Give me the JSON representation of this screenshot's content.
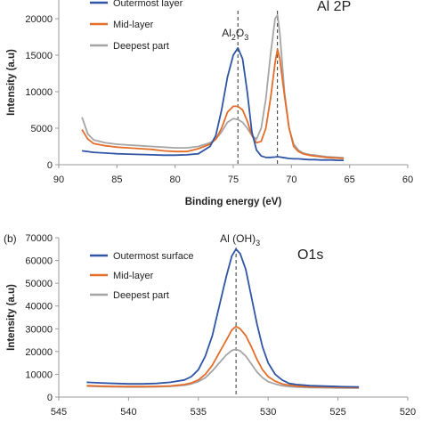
{
  "chart_data": [
    {
      "type": "line",
      "panel_label": "",
      "title": "Al 2P",
      "title_display": "Al 2P",
      "xlabel": "Binding energy (eV)",
      "ylabel": "Intensity (a.u)",
      "xlim": [
        90,
        60
      ],
      "ylim": [
        0,
        25000
      ],
      "xticks": [
        90,
        85,
        80,
        75,
        70,
        65,
        60
      ],
      "yticks": [
        0,
        5000,
        10000,
        15000,
        20000
      ],
      "grid": false,
      "legend_position": "top-left",
      "colors": {
        "series_1": "#2f55a4",
        "series_2": "#e46d2a",
        "series_3": "#a5a5a5"
      },
      "annotations": [
        {
          "text_main": "Al",
          "text_sub1": "2",
          "text_mid": "O",
          "text_sub2": "3",
          "x": 74.6
        },
        {
          "text": "",
          "x": 71.2
        }
      ],
      "series": [
        {
          "name": "Outermost layer",
          "x": [
            88,
            87,
            86,
            85,
            84,
            83,
            82,
            81,
            80,
            79,
            78,
            77,
            76.5,
            76,
            75.5,
            75,
            74.6,
            74.2,
            73.8,
            73.4,
            73,
            72.6,
            72.2,
            71.8,
            71.4,
            71.2,
            71,
            70.6,
            70.2,
            69.8,
            69.4,
            69,
            68.5,
            68,
            67.5,
            67,
            66.5,
            66,
            65.5
          ],
          "y": [
            1900,
            1700,
            1600,
            1500,
            1450,
            1400,
            1350,
            1300,
            1300,
            1350,
            1500,
            2500,
            4000,
            7500,
            12000,
            15000,
            16000,
            14500,
            10000,
            4500,
            2000,
            1200,
            1000,
            1000,
            1050,
            1100,
            1050,
            950,
            850,
            800,
            800,
            750,
            700,
            700,
            650,
            650,
            650,
            600,
            600
          ]
        },
        {
          "name": "Mid-layer",
          "x": [
            88,
            87.5,
            87,
            86,
            85,
            84,
            83,
            82,
            81,
            80,
            79,
            78,
            77,
            76.5,
            76,
            75.5,
            75,
            74.6,
            74.2,
            73.8,
            73.4,
            73,
            72.6,
            72.2,
            71.8,
            71.4,
            71.2,
            71,
            70.6,
            70.2,
            69.8,
            69.4,
            69,
            68.5,
            68,
            67.5,
            67,
            66.5,
            66,
            65.5
          ],
          "y": [
            4800,
            3500,
            2900,
            2600,
            2400,
            2300,
            2200,
            2100,
            1900,
            1800,
            1800,
            2200,
            2800,
            3500,
            5000,
            7200,
            8000,
            8000,
            7500,
            6000,
            4000,
            3000,
            3200,
            5000,
            9000,
            14000,
            15800,
            14500,
            9500,
            5000,
            2500,
            1800,
            1500,
            1300,
            1200,
            1100,
            1000,
            950,
            900,
            850
          ]
        },
        {
          "name": "Deepest part",
          "x": [
            88,
            87.5,
            87,
            86,
            85,
            84,
            83,
            82,
            81,
            80,
            79,
            78,
            77,
            76.5,
            76,
            75.5,
            75,
            74.6,
            74.2,
            73.8,
            73.4,
            73,
            72.6,
            72.2,
            71.8,
            71.4,
            71.2,
            71,
            70.6,
            70.2,
            69.8,
            69.4,
            69,
            68.5,
            68,
            67.5,
            67,
            66.5,
            66,
            65.5
          ],
          "y": [
            6500,
            4200,
            3400,
            3000,
            2800,
            2700,
            2600,
            2500,
            2400,
            2300,
            2300,
            2500,
            3000,
            3500,
            4500,
            5800,
            6300,
            6200,
            5800,
            5000,
            4000,
            3500,
            5000,
            9000,
            15000,
            20000,
            20500,
            18000,
            10000,
            5000,
            2800,
            2000,
            1600,
            1400,
            1300,
            1200,
            1100,
            1050,
            1000,
            950
          ]
        }
      ]
    },
    {
      "type": "line",
      "panel_label": "(b)",
      "title": "O1s",
      "xlabel": "",
      "ylabel": "Intensity (a.u)",
      "xlim": [
        545,
        520
      ],
      "ylim": [
        0,
        70000
      ],
      "xticks": [
        545,
        540,
        535,
        530,
        525,
        520
      ],
      "yticks": [
        0,
        10000,
        20000,
        30000,
        40000,
        50000,
        60000,
        70000
      ],
      "grid": false,
      "legend_position": "top-left",
      "colors": {
        "series_1": "#2f55a4",
        "series_2": "#e46d2a",
        "series_3": "#a5a5a5"
      },
      "annotations": [
        {
          "text_main": "Al (OH)",
          "text_sub1": "3",
          "x": 532.3
        }
      ],
      "series": [
        {
          "name": "Outermost surface",
          "x": [
            543,
            542,
            541,
            540,
            539,
            538,
            537,
            536,
            535.5,
            535,
            534.5,
            534,
            533.5,
            533,
            532.6,
            532.3,
            532,
            531.6,
            531.2,
            530.8,
            530.4,
            530,
            529.5,
            529,
            528.5,
            528,
            527,
            526,
            525,
            524,
            523.5
          ],
          "y": [
            6500,
            6200,
            6000,
            5800,
            5800,
            6000,
            6500,
            7500,
            9000,
            12000,
            18000,
            27000,
            40000,
            53000,
            62000,
            65000,
            63000,
            56000,
            44000,
            32000,
            22000,
            15000,
            10000,
            7500,
            6000,
            5500,
            5000,
            4800,
            4600,
            4500,
            4400
          ]
        },
        {
          "name": "Mid-layer",
          "x": [
            543,
            542,
            541,
            540,
            539,
            538,
            537,
            536,
            535.5,
            535,
            534.5,
            534,
            533.5,
            533,
            532.6,
            532.3,
            532,
            531.6,
            531.2,
            530.8,
            530.4,
            530,
            529.5,
            529,
            528.5,
            528,
            527,
            526,
            525,
            524,
            523.5
          ],
          "y": [
            5000,
            4800,
            4700,
            4600,
            4600,
            4700,
            4900,
            5500,
            6200,
            7500,
            10000,
            14000,
            19500,
            25000,
            29500,
            31000,
            30000,
            27000,
            22000,
            16500,
            12000,
            9000,
            7000,
            5800,
            5200,
            4800,
            4500,
            4400,
            4300,
            4200,
            4200
          ]
        },
        {
          "name": "Deepest part",
          "x": [
            543,
            542,
            541,
            540,
            539,
            538,
            537,
            536,
            535.5,
            535,
            534.5,
            534,
            533.5,
            533,
            532.6,
            532.3,
            532,
            531.6,
            531.2,
            530.8,
            530.4,
            530,
            529.5,
            529,
            528.5,
            528,
            527,
            526,
            525,
            524,
            523.5
          ],
          "y": [
            4800,
            4600,
            4500,
            4400,
            4400,
            4500,
            4700,
            5200,
            5800,
            6800,
            8500,
            11500,
            15000,
            18500,
            20500,
            21000,
            20300,
            18000,
            14500,
            11000,
            8500,
            6800,
            5800,
            5000,
            4600,
            4400,
            4200,
            4100,
            4000,
            4000,
            3900
          ]
        }
      ]
    }
  ]
}
